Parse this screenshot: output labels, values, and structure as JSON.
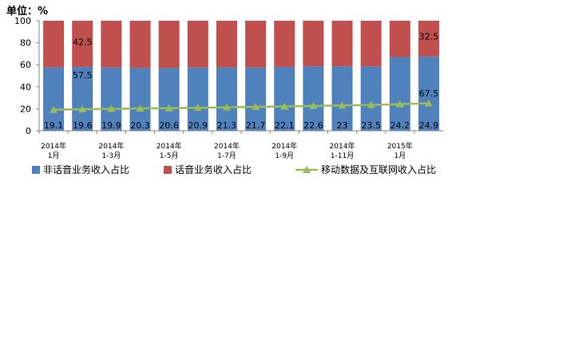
{
  "chart_data": {
    "type": "bar",
    "title": "单位：%",
    "categories": [
      "2014年\n1月",
      null,
      "2014年\n1-3月",
      null,
      "2014年\n1-5月",
      null,
      "2014年\n1-7月",
      null,
      "2014年\n1-9月",
      null,
      "2014年\n1-11月",
      null,
      "2015年\n1月",
      null
    ],
    "series": [
      {
        "name": "非话音业务收入占比",
        "color": "#4f81bd",
        "values": [
          57.5,
          58,
          57.5,
          57,
          57,
          57.5,
          57.5,
          57.5,
          58,
          58.5,
          58.5,
          58.5,
          67,
          67.5
        ]
      },
      {
        "name": "话音业务收入占比",
        "color": "#c0504d",
        "values": [
          42.5,
          42,
          42.5,
          43,
          43,
          42.5,
          42.5,
          42.5,
          42,
          41.5,
          41.5,
          41.5,
          33,
          32.5
        ]
      },
      {
        "name": "移动数据及互联网收入占比",
        "color": "#9bbb59",
        "type": "line",
        "values": [
          19.1,
          19.6,
          19.9,
          20.3,
          20.6,
          20.9,
          21.3,
          21.7,
          22.1,
          22.6,
          23.0,
          23.5,
          24.2,
          24.9
        ]
      }
    ],
    "ylim": [
      0,
      100
    ],
    "yticks": [
      0,
      20,
      40,
      60,
      80,
      100
    ],
    "stacked": true
  }
}
